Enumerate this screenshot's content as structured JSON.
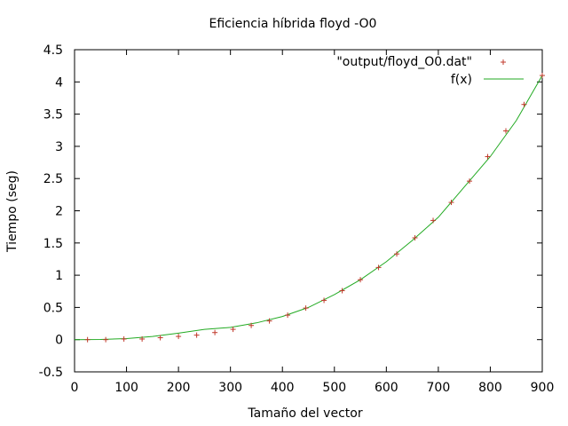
{
  "chart_data": {
    "type": "scatter",
    "title": "Eficiencia híbrida floyd -O0",
    "xlabel": "Tamaño del vector",
    "ylabel": "Tiempo (seg)",
    "xlim": [
      0,
      900
    ],
    "ylim": [
      -0.5,
      4.5
    ],
    "xticks": [
      0,
      100,
      200,
      300,
      400,
      500,
      600,
      700,
      800,
      900
    ],
    "yticks": [
      -0.5,
      0,
      0.5,
      1,
      1.5,
      2,
      2.5,
      3,
      3.5,
      4,
      4.5
    ],
    "xtick_labels": [
      "0",
      "100",
      "200",
      "300",
      "400",
      "500",
      "600",
      "700",
      "800",
      "900"
    ],
    "ytick_labels": [
      "-0.5",
      "0",
      "0.5",
      "1",
      "1.5",
      "2",
      "2.5",
      "3",
      "3.5",
      "4",
      "4.5"
    ],
    "grid": false,
    "legend_position": "top-right",
    "series": [
      {
        "name": "\"output/floyd_O0.dat\"",
        "kind": "points",
        "marker": "plus",
        "color": "#c0392b",
        "x": [
          25,
          60,
          95,
          130,
          165,
          200,
          235,
          270,
          305,
          340,
          375,
          410,
          445,
          480,
          515,
          550,
          585,
          620,
          655,
          690,
          725,
          760,
          795,
          830,
          865,
          900
        ],
        "y": [
          0.0,
          0.0,
          0.01,
          0.01,
          0.03,
          0.05,
          0.07,
          0.11,
          0.16,
          0.22,
          0.29,
          0.38,
          0.49,
          0.61,
          0.76,
          0.93,
          1.12,
          1.33,
          1.58,
          1.85,
          2.13,
          2.46,
          2.84,
          3.24,
          3.65,
          4.1
        ]
      },
      {
        "name": "f(x)",
        "kind": "line",
        "color": "#22aa22",
        "x": [
          0,
          50,
          100,
          150,
          200,
          250,
          300,
          350,
          400,
          450,
          500,
          550,
          600,
          650,
          700,
          750,
          800,
          850,
          900
        ],
        "y": [
          0.0,
          0.003,
          0.016,
          0.049,
          0.1,
          0.16,
          0.19,
          0.26,
          0.36,
          0.5,
          0.7,
          0.93,
          1.21,
          1.54,
          1.9,
          2.37,
          2.84,
          3.4,
          4.1
        ]
      }
    ]
  }
}
